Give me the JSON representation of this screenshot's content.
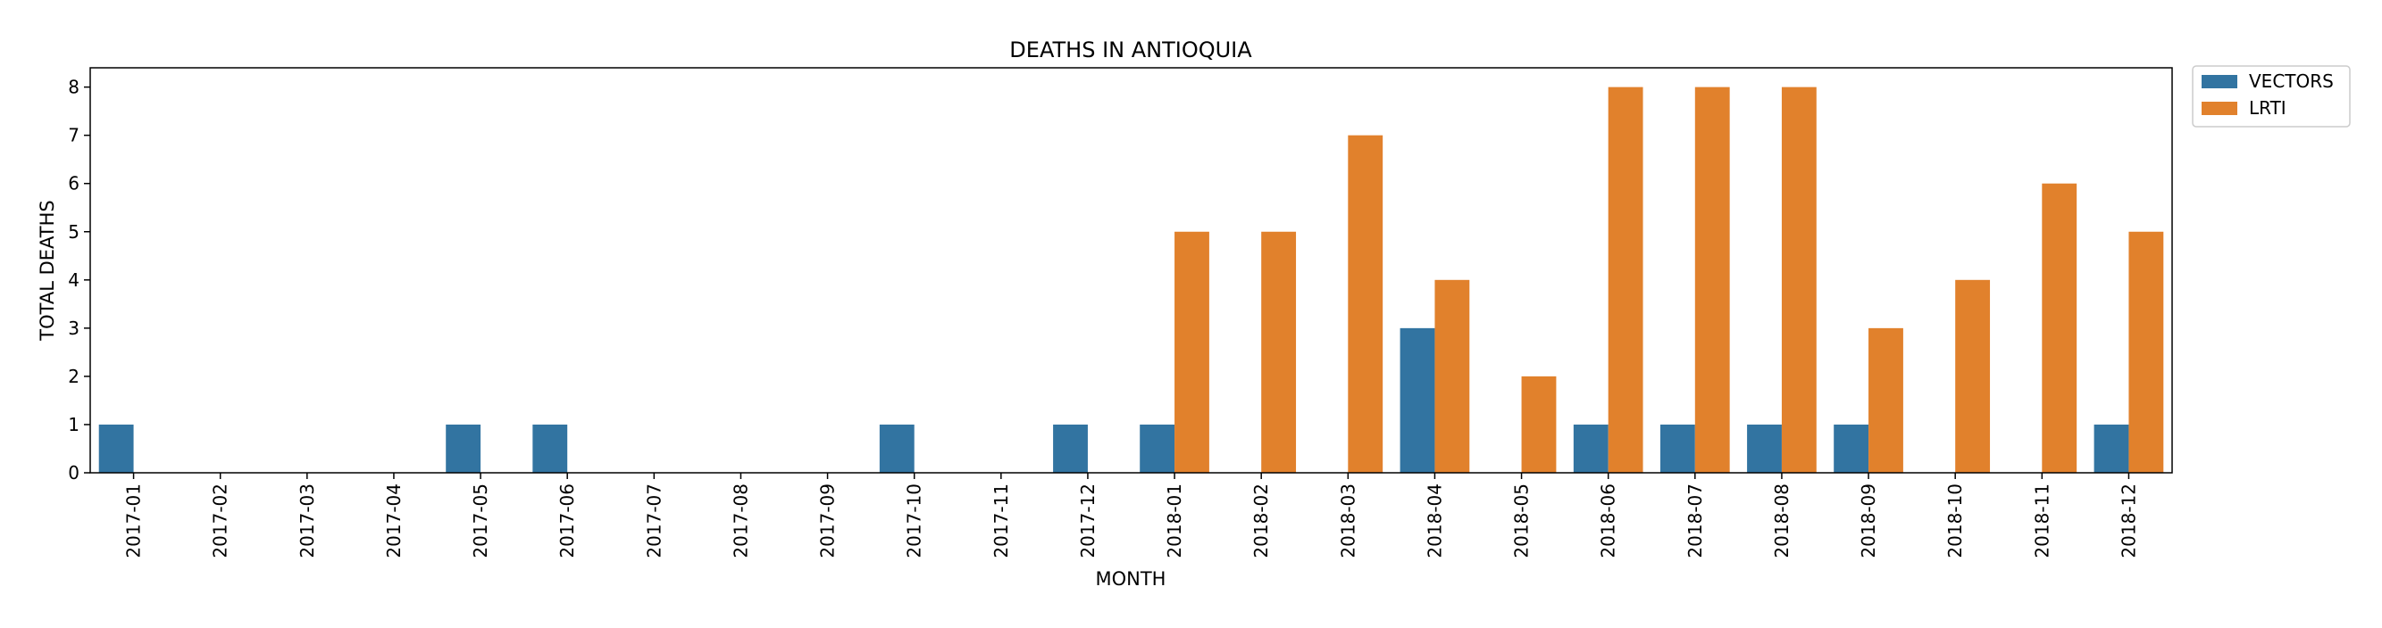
{
  "chart_data": {
    "type": "bar",
    "title": "DEATHS IN ANTIOQUIA",
    "xlabel": "MONTH",
    "ylabel": "TOTAL DEATHS",
    "ylim": [
      0,
      8.4
    ],
    "yticks": [
      0,
      1,
      2,
      3,
      4,
      5,
      6,
      7,
      8
    ],
    "grid": false,
    "legend_position": "outside-top-right",
    "categories": [
      "2017-01",
      "2017-02",
      "2017-03",
      "2017-04",
      "2017-05",
      "2017-06",
      "2017-07",
      "2017-08",
      "2017-09",
      "2017-10",
      "2017-11",
      "2017-12",
      "2018-01",
      "2018-02",
      "2018-03",
      "2018-04",
      "2018-05",
      "2018-06",
      "2018-07",
      "2018-08",
      "2018-09",
      "2018-10",
      "2018-11",
      "2018-12"
    ],
    "series": [
      {
        "name": "VECTORS",
        "color": "#3274a1",
        "values": [
          1,
          0,
          0,
          0,
          1,
          1,
          0,
          0,
          0,
          1,
          0,
          1,
          1,
          0,
          0,
          3,
          0,
          1,
          1,
          1,
          1,
          0,
          0,
          1
        ]
      },
      {
        "name": "LRTI",
        "color": "#e1812c",
        "values": [
          0,
          0,
          0,
          0,
          0,
          0,
          0,
          0,
          0,
          0,
          0,
          0,
          5,
          5,
          7,
          4,
          2,
          8,
          8,
          8,
          3,
          4,
          6,
          5
        ]
      }
    ]
  }
}
